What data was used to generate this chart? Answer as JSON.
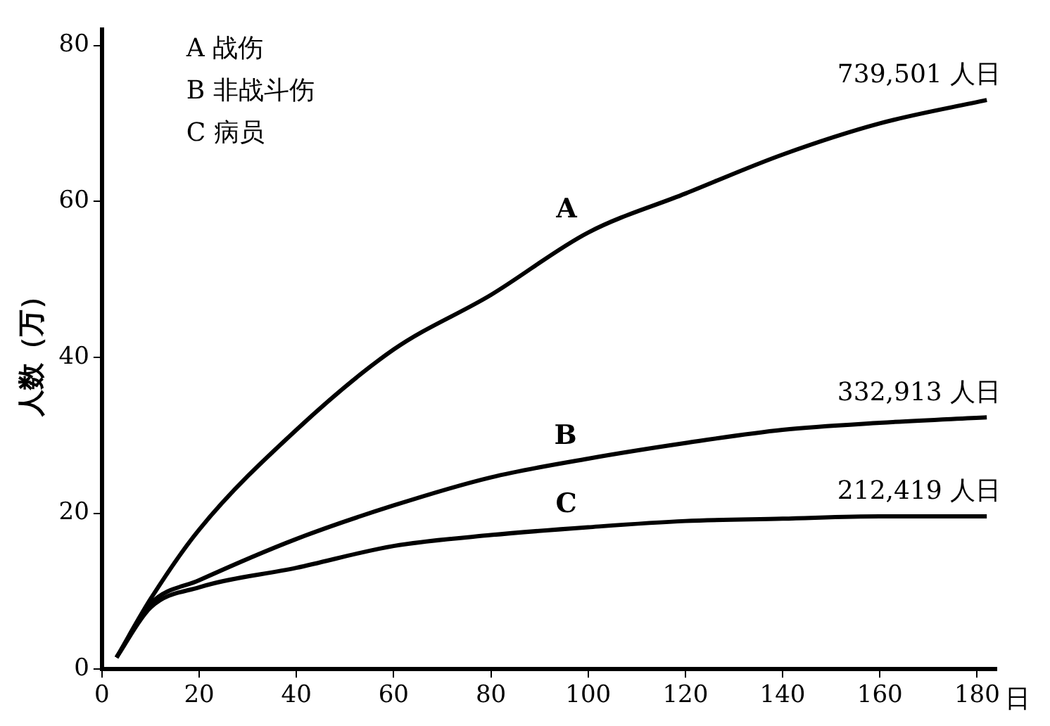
{
  "chart_data": {
    "type": "line",
    "xlabel": "日",
    "ylabel": "人数（万）",
    "x": [
      3,
      10,
      20,
      40,
      60,
      80,
      100,
      120,
      140,
      160,
      182
    ],
    "series": [
      {
        "name": "A",
        "color": "#000000",
        "values": [
          1.5,
          9,
          17.9,
          30.7,
          41,
          48,
          56,
          61,
          66,
          70,
          73
        ]
      },
      {
        "name": "B",
        "color": "#000000",
        "values": [
          1.5,
          8.4,
          11.4,
          16.7,
          21,
          24.6,
          27,
          29,
          30.7,
          31.6,
          32.3
        ]
      },
      {
        "name": "C",
        "color": "#000000",
        "values": [
          1.5,
          7.9,
          10.5,
          13,
          15.8,
          17.2,
          18.2,
          19,
          19.3,
          19.6,
          19.6
        ]
      }
    ],
    "annotations": [
      "A 战伤",
      "B 非战斗伤",
      "C 病员",
      "739,501 人日",
      "332,913 人日",
      "212,419 人日"
    ],
    "xlim": [
      0,
      184
    ],
    "ylim": [
      0,
      82
    ],
    "xticks": [
      0,
      20,
      40,
      60,
      80,
      100,
      120,
      140,
      160,
      180
    ],
    "yticks": [
      0,
      20,
      40,
      60,
      80
    ],
    "grid": false,
    "legend": false,
    "marker": "none",
    "line_style": "solid"
  }
}
